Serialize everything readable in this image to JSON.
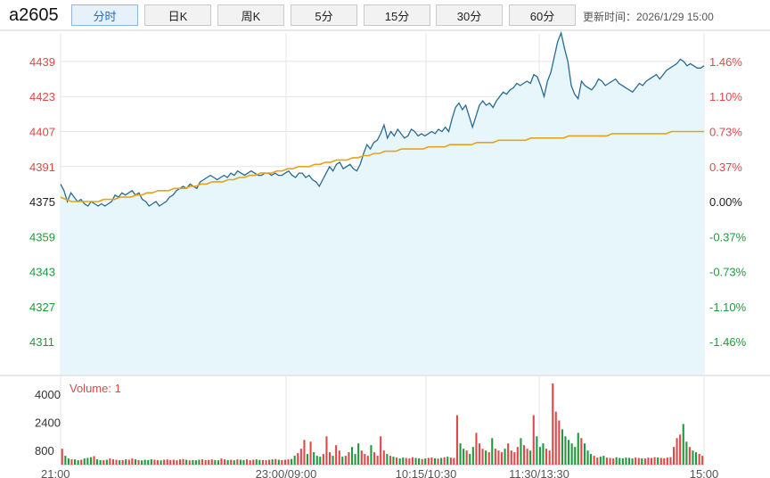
{
  "header": {
    "symbol": "a2605",
    "tabs": [
      {
        "label": "分时",
        "active": true
      },
      {
        "label": "日K",
        "active": false
      },
      {
        "label": "周K",
        "active": false
      },
      {
        "label": "5分",
        "active": false
      },
      {
        "label": "15分",
        "active": false
      },
      {
        "label": "30分",
        "active": false
      },
      {
        "label": "60分",
        "active": false
      }
    ],
    "updated": "更新时间：2026/1/29 15:00"
  },
  "colors": {
    "up": "#e04848",
    "down": "#1f9a3c",
    "price_line": "#2a6b8f",
    "avg_line": "#e8a21a",
    "area_fill": "#e6f6fb",
    "grid": "#e4e4e4"
  },
  "chart_data": [
    {
      "type": "line",
      "ref_price": 4375,
      "y_ticks": [
        4439,
        4423,
        4407,
        4391,
        4375,
        4359,
        4343,
        4327,
        4311
      ],
      "y_right_ticks": [
        "1.46%",
        "1.10%",
        "0.73%",
        "0.37%",
        "0.00%",
        "-0.37%",
        "-0.73%",
        "-1.10%",
        "-1.46%"
      ],
      "x_ticks": [
        "21:00",
        "23:00/09:00",
        "10:15/10:30",
        "11:30/13:30",
        "15:00"
      ],
      "ylim": [
        4296,
        4452
      ],
      "series": [
        {
          "role": "price",
          "values": [
            4383,
            4380,
            4375,
            4379,
            4377,
            4375,
            4376,
            4374,
            4373,
            4375,
            4374,
            4373,
            4374,
            4373,
            4374,
            4375,
            4378,
            4377,
            4379,
            4378,
            4379,
            4380,
            4378,
            4379,
            4376,
            4375,
            4373,
            4374,
            4375,
            4373,
            4374,
            4375,
            4377,
            4378,
            4380,
            4381,
            4382,
            4381,
            4383,
            4382,
            4381,
            4384,
            4385,
            4386,
            4387,
            4386,
            4385,
            4386,
            4387,
            4386,
            4388,
            4387,
            4389,
            4388,
            4387,
            4388,
            4389,
            4388,
            4387,
            4387,
            4388,
            4388,
            4387,
            4388,
            4387,
            4387,
            4388,
            4389,
            4387,
            4386,
            4388,
            4388,
            4386,
            4387,
            4385,
            4384,
            4382,
            4385,
            4388,
            4391,
            4389,
            4392,
            4393,
            4390,
            4391,
            4392,
            4390,
            4389,
            4392,
            4397,
            4401,
            4399,
            4402,
            4403,
            4406,
            4410,
            4404,
            4407,
            4405,
            4408,
            4406,
            4404,
            4405,
            4408,
            4407,
            4405,
            4406,
            4405,
            4406,
            4407,
            4406,
            4408,
            4407,
            4409,
            4407,
            4413,
            4418,
            4420,
            4417,
            4419,
            4414,
            4409,
            4414,
            4419,
            4421,
            4419,
            4420,
            4418,
            4421,
            4423,
            4425,
            4424,
            4426,
            4427,
            4429,
            4428,
            4429,
            4430,
            4429,
            4433,
            4432,
            4428,
            4423,
            4430,
            4434,
            4441,
            4448,
            4452,
            4445,
            4439,
            4428,
            4424,
            4422,
            4430,
            4428,
            4427,
            4426,
            4428,
            4431,
            4430,
            4428,
            4429,
            4430,
            4431,
            4429,
            4428,
            4427,
            4426,
            4425,
            4427,
            4429,
            4428,
            4430,
            4431,
            4432,
            4433,
            4431,
            4433,
            4435,
            4436,
            4437,
            4438,
            4440,
            4439,
            4437,
            4438,
            4437,
            4436,
            4436,
            4437
          ],
          "color": "price_line"
        },
        {
          "role": "average",
          "values": [
            4377,
            4376,
            4375,
            4375,
            4375,
            4375,
            4375,
            4375,
            4376,
            4376,
            4376,
            4377,
            4377,
            4377,
            4378,
            4378,
            4379,
            4379,
            4380,
            4380,
            4380,
            4381,
            4381,
            4381,
            4382,
            4382,
            4383,
            4383,
            4384,
            4384,
            4384,
            4385,
            4385,
            4386,
            4386,
            4387,
            4387,
            4388,
            4388,
            4388,
            4389,
            4389,
            4390,
            4390,
            4391,
            4391,
            4391,
            4392,
            4392,
            4393,
            4393,
            4394,
            4394,
            4394,
            4395,
            4395,
            4396,
            4396,
            4397,
            4397,
            4398,
            4398,
            4398,
            4399,
            4399,
            4399,
            4399,
            4399,
            4400,
            4400,
            4400,
            4400,
            4401,
            4401,
            4401,
            4401,
            4401,
            4402,
            4402,
            4402,
            4402,
            4403,
            4403,
            4403,
            4403,
            4403,
            4403,
            4404,
            4404,
            4404,
            4404,
            4404,
            4404,
            4404,
            4405,
            4405,
            4405,
            4405,
            4405,
            4405,
            4405,
            4405,
            4406,
            4406,
            4406,
            4406,
            4406,
            4406,
            4406,
            4406,
            4406,
            4406,
            4406,
            4407,
            4407,
            4407,
            4407,
            4407,
            4407,
            4407
          ],
          "color": "avg_line"
        }
      ]
    },
    {
      "type": "bar",
      "title": "Volume: 1",
      "y_ticks": [
        4000,
        2400,
        800
      ],
      "ylim": [
        0,
        4900
      ],
      "values": [
        900,
        500,
        350,
        300,
        300,
        250,
        280,
        350,
        380,
        420,
        480,
        300,
        260,
        250,
        280,
        350,
        300,
        280,
        250,
        260,
        300,
        280,
        350,
        300,
        260,
        240,
        280,
        260,
        300,
        280,
        250,
        240,
        280,
        300,
        260,
        280,
        250,
        300,
        320,
        280,
        240,
        260,
        250,
        280,
        300,
        260,
        270,
        300,
        260,
        240,
        350,
        300,
        260,
        280,
        250,
        300,
        280,
        260,
        300,
        250,
        280,
        300,
        270,
        260,
        250,
        280,
        300,
        320,
        280,
        260,
        280,
        300,
        320,
        500,
        650,
        900,
        1400,
        600,
        1300,
        700,
        500,
        450,
        600,
        1600,
        700,
        500,
        1100,
        800,
        450,
        500,
        700,
        1000,
        600,
        1200,
        800,
        600,
        500,
        1100,
        700,
        500,
        1600,
        800,
        600,
        500,
        450,
        400,
        350,
        400,
        380,
        350,
        420,
        380,
        360,
        320,
        350,
        380,
        400,
        360,
        340,
        380,
        420,
        450,
        400,
        380,
        2800,
        1200,
        900,
        800,
        600,
        1000,
        1800,
        1200,
        900,
        800,
        700,
        1500,
        900,
        800,
        700,
        900,
        1200,
        800,
        700,
        1000,
        1500,
        1100,
        900,
        800,
        2800,
        1600,
        1000,
        1200,
        900,
        800,
        4600,
        3000,
        2500,
        2000,
        1600,
        1400,
        1200,
        1000,
        1800,
        1500,
        1200,
        800,
        600,
        500,
        400,
        450,
        500,
        400,
        380,
        350,
        420,
        380,
        360,
        400,
        380,
        350,
        400,
        380,
        360,
        350,
        400,
        380,
        420,
        400,
        380,
        360,
        400,
        420,
        1000,
        1500,
        1700,
        2300,
        1300,
        1000,
        800,
        700,
        600,
        500
      ]
    }
  ]
}
